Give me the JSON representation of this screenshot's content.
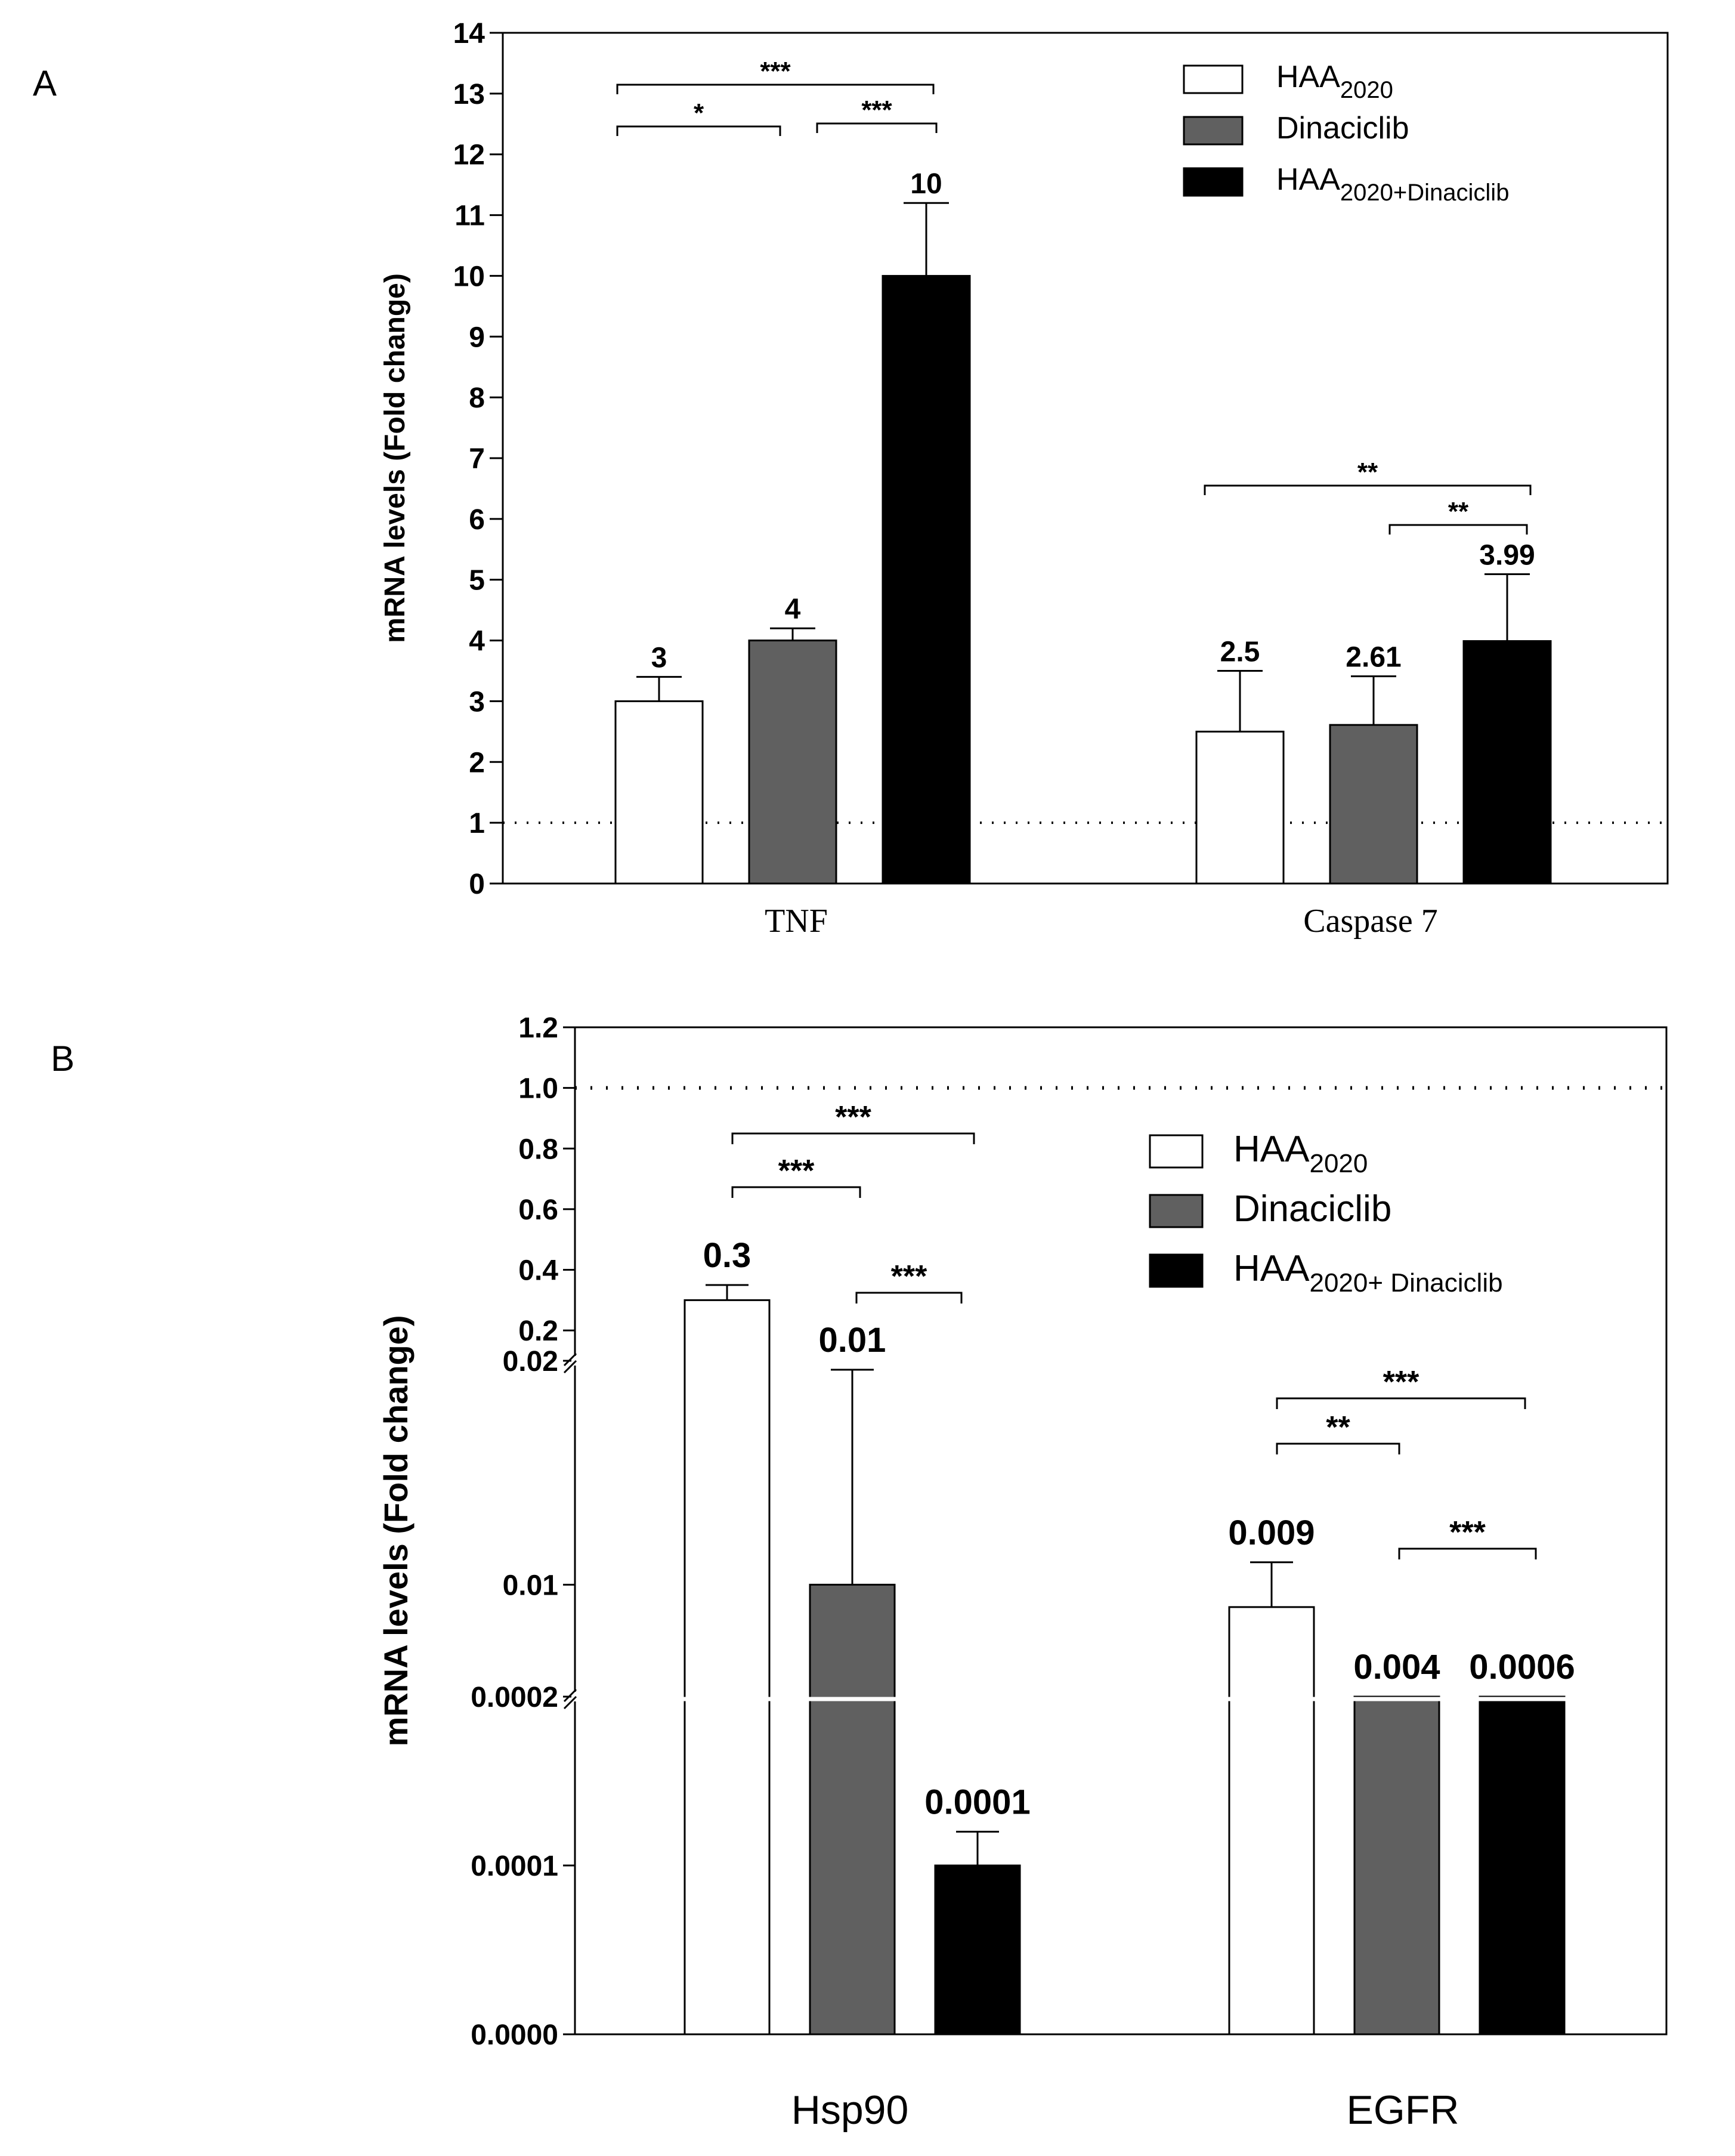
{
  "panels": {
    "a_letter": "A",
    "b_letter": "B"
  },
  "chart_data": [
    {
      "type": "bar",
      "panel": "A",
      "ylabel": "mRNA levels (Fold change)",
      "ylim": [
        0,
        14
      ],
      "y_ticks": [
        "0",
        "1",
        "2",
        "3",
        "4",
        "5",
        "6",
        "7",
        "8",
        "9",
        "10",
        "11",
        "12",
        "13",
        "14"
      ],
      "reference_line": 1,
      "categories": [
        "TNF",
        "Caspase 7"
      ],
      "series": [
        {
          "name": "HAA2020",
          "values": [
            3,
            2.5
          ],
          "errors": [
            0.4,
            1.0
          ],
          "labels": [
            "3",
            "2.5"
          ],
          "color": "#ffffff"
        },
        {
          "name": "Dinaciclib",
          "values": [
            4,
            2.61
          ],
          "errors": [
            0.2,
            0.8
          ],
          "labels": [
            "4",
            "2.61"
          ],
          "color": "#606060"
        },
        {
          "name": "HAA2020+Dinaciclib",
          "values": [
            10,
            3.99
          ],
          "errors": [
            1.2,
            1.1
          ],
          "labels": [
            "10",
            "3.99"
          ],
          "color": "#000000"
        }
      ],
      "legend": {
        "position": "top-right",
        "entries": [
          {
            "main": "HAA",
            "sub": "2020"
          },
          {
            "main": "Dinaciclib",
            "sub": ""
          },
          {
            "main": "HAA",
            "sub": "2020+Dinaciclib"
          }
        ]
      },
      "significance": [
        {
          "category": 0,
          "from": 0,
          "to": 2,
          "text": "***"
        },
        {
          "category": 0,
          "from": 0,
          "to": 1,
          "text": "*"
        },
        {
          "category": 0,
          "from": 1,
          "to": 2,
          "text": "***"
        },
        {
          "category": 1,
          "from": 0,
          "to": 2,
          "text": "**"
        },
        {
          "category": 1,
          "from": 1,
          "to": 2,
          "text": "**"
        }
      ]
    },
    {
      "type": "bar",
      "panel": "B",
      "ylabel": "mRNA levels (Fold change)",
      "y_scale": "broken",
      "y_segments": [
        {
          "range": [
            0,
            0.0002
          ],
          "ticks": [
            "0.0000",
            "0.0001",
            "0.0002"
          ]
        },
        {
          "range": [
            0.005,
            0.02
          ],
          "ticks": [
            "0.01",
            "0.02"
          ]
        },
        {
          "range": [
            0.1,
            1.2
          ],
          "ticks": [
            "0.2",
            "0.4",
            "0.6",
            "0.8",
            "1.0",
            "1.2"
          ]
        }
      ],
      "reference_line": 1.0,
      "categories": [
        "Hsp90",
        "EGFR"
      ],
      "series": [
        {
          "name": "HAA2020",
          "values": [
            0.3,
            0.009
          ],
          "labels": [
            "0.3",
            "0.009"
          ],
          "color": "#ffffff"
        },
        {
          "name": "Dinaciclib",
          "values": [
            0.01,
            0.004
          ],
          "labels": [
            "0.01",
            "0.004"
          ],
          "color": "#606060"
        },
        {
          "name": "HAA2020+Dinaciclib",
          "values": [
            0.0001,
            0.0006
          ],
          "labels": [
            "0.0001",
            "0.0006"
          ],
          "color": "#000000"
        }
      ],
      "legend": {
        "position": "top-right",
        "entries": [
          {
            "main": "HAA",
            "sub": "2020"
          },
          {
            "main": "Dinaciclib",
            "sub": ""
          },
          {
            "main": "HAA",
            "sub": "2020+ Dinaciclib"
          }
        ]
      },
      "significance": [
        {
          "category": 0,
          "from": 0,
          "to": 2,
          "text": "***"
        },
        {
          "category": 0,
          "from": 0,
          "to": 1,
          "text": "***"
        },
        {
          "category": 0,
          "from": 1,
          "to": 2,
          "text": "***"
        },
        {
          "category": 1,
          "from": 0,
          "to": 2,
          "text": "***"
        },
        {
          "category": 1,
          "from": 0,
          "to": 1,
          "text": "**"
        },
        {
          "category": 1,
          "from": 1,
          "to": 2,
          "text": "***"
        }
      ]
    }
  ]
}
